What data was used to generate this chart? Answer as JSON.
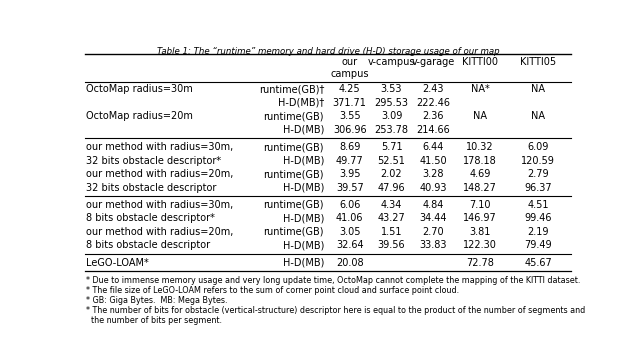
{
  "title": "Table 1: The “runtime” memory and hard drive (H-D) storage usage of our map",
  "col_headers": [
    "our\ncampus",
    "v-campus",
    "v-garage",
    "KITTI00",
    "KITTI05"
  ],
  "rows": [
    [
      "OctoMap radius=30m",
      "runtime(GB)†",
      "4.25",
      "3.53",
      "2.43",
      "NA*",
      "NA"
    ],
    [
      "",
      "H-D(MB)†",
      "371.71",
      "295.53",
      "222.46",
      "",
      ""
    ],
    [
      "OctoMap radius=20m",
      "runtime(GB)",
      "3.55",
      "3.09",
      "2.36",
      "NA",
      "NA"
    ],
    [
      "",
      "H-D(MB)",
      "306.96",
      "253.78",
      "214.66",
      "",
      ""
    ],
    [
      "our method with radius=30m,",
      "runtime(GB)",
      "8.69",
      "5.71",
      "6.44",
      "10.32",
      "6.09"
    ],
    [
      "32 bits obstacle descriptor*",
      "H-D(MB)",
      "49.77",
      "52.51",
      "41.50",
      "178.18",
      "120.59"
    ],
    [
      "our method with radius=20m,",
      "runtime(GB)",
      "3.95",
      "2.02",
      "3.28",
      "4.69",
      "2.79"
    ],
    [
      "32 bits obstacle descriptor",
      "H-D(MB)",
      "39.57",
      "47.96",
      "40.93",
      "148.27",
      "96.37"
    ],
    [
      "our method with radius=30m,",
      "runtime(GB)",
      "6.06",
      "4.34",
      "4.84",
      "7.10",
      "4.51"
    ],
    [
      "8 bits obstacle descriptor*",
      "H-D(MB)",
      "41.06",
      "43.27",
      "34.44",
      "146.97",
      "99.46"
    ],
    [
      "our method with radius=20m,",
      "runtime(GB)",
      "3.05",
      "1.51",
      "2.70",
      "3.81",
      "2.19"
    ],
    [
      "8 bits obstacle descriptor",
      "H-D(MB)",
      "32.64",
      "39.56",
      "33.83",
      "122.30",
      "79.49"
    ],
    [
      "LeGO-LOAM*",
      "H-D(MB)",
      "20.08",
      "",
      "",
      "72.78",
      "45.67"
    ]
  ],
  "footnotes": [
    "* Due to immense memory usage and very long update time, OctoMap cannot complete the mapping of the KITTI dataset.",
    "* The file size of LeGO-LOAM refers to the sum of corner point cloud and surface point cloud.",
    "* GB: Giga Bytes.  MB: Mega Bytes.",
    "* The number of bits for obstacle (vertical-structure) descriptor here is equal to the product of the number of segments and",
    "  the number of bits per segment."
  ],
  "separator_after_rows": [
    3,
    7,
    11
  ],
  "background_color": "#ffffff",
  "text_color": "#000000"
}
